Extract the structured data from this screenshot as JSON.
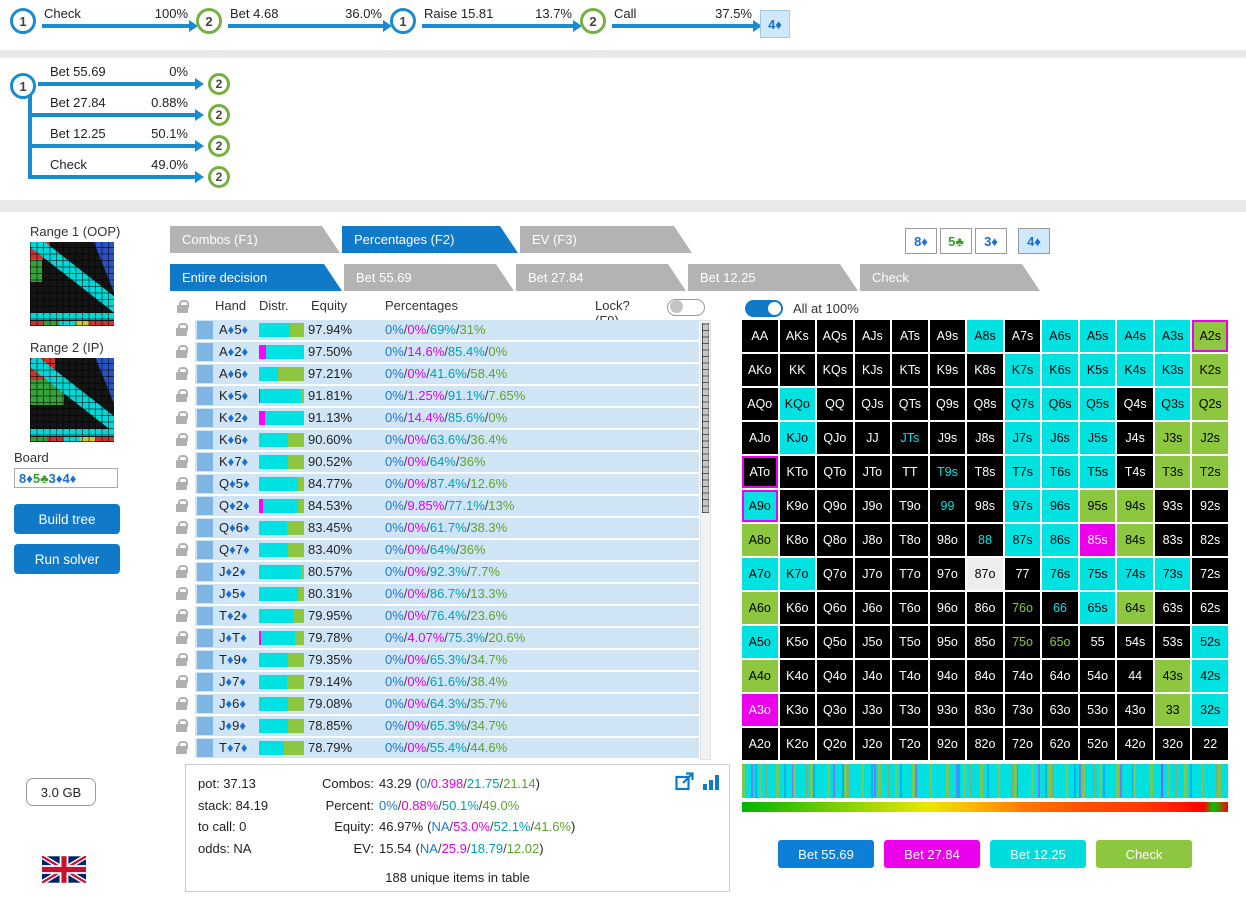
{
  "colors": {
    "action_text": [
      "#1d79cf",
      "#e100e1",
      "#009fae",
      "#5ea32a"
    ],
    "action_fill": [
      "#1d8ad6",
      "#ff00ff",
      "#00e2e2",
      "#8dc63f"
    ],
    "suit": {
      "d": "#1d6fd1",
      "c": "#3a9e27"
    },
    "accent_blue": "#1079c8"
  },
  "top_tree": {
    "nodes": [
      {
        "num": "1",
        "action": "Check",
        "pct": "100%"
      },
      {
        "num": "2",
        "action": "Bet 4.68",
        "pct": "36.0%"
      },
      {
        "num": "1",
        "action": "Raise 15.81",
        "pct": "13.7%"
      },
      {
        "num": "2",
        "action": "Call",
        "pct": "37.5%"
      }
    ],
    "card": "4♦"
  },
  "decision_tree": {
    "root_num": "1",
    "branches": [
      {
        "action": "Bet 55.69",
        "pct": "0%",
        "node": "2"
      },
      {
        "action": "Bet 27.84",
        "pct": "0.88%",
        "node": "2"
      },
      {
        "action": "Bet 12.25",
        "pct": "50.1%",
        "node": "2"
      },
      {
        "action": "Check",
        "pct": "49.0%",
        "node": "2"
      }
    ]
  },
  "sidebar": {
    "range1_label": "Range 1 (OOP)",
    "range2_label": "Range 2 (IP)",
    "board_label": "Board",
    "build_tree_label": "Build tree",
    "run_solver_label": "Run solver",
    "memory_label": "3.0 GB"
  },
  "board_cards": [
    {
      "label": "8♦",
      "suit": "d",
      "highlight": false
    },
    {
      "label": "5♣",
      "suit": "c",
      "highlight": false
    },
    {
      "label": "3♦",
      "suit": "d",
      "highlight": false
    },
    {
      "label": "4♦",
      "suit": "d",
      "highlight": true
    }
  ],
  "tabs_primary": [
    {
      "label": "Combos (F1)",
      "active": false
    },
    {
      "label": "Percentages (F2)",
      "active": true
    },
    {
      "label": "EV (F3)",
      "active": false
    }
  ],
  "tabs_secondary": [
    {
      "label": "Entire decision",
      "active": true
    },
    {
      "label": "Bet 55.69",
      "active": false
    },
    {
      "label": "Bet 27.84",
      "active": false
    },
    {
      "label": "Bet 12.25",
      "active": false
    },
    {
      "label": "Check",
      "active": false
    }
  ],
  "table": {
    "headers": {
      "hand": "Hand",
      "distr": "Distr.",
      "equity": "Equity",
      "percentages": "Percentages",
      "lock": "Lock? (F9)"
    },
    "lock_toggle_on": false,
    "rows": [
      {
        "hand": "A♦5♦",
        "equity": "97.94%",
        "pcts": [
          "0%",
          "0%",
          "69%",
          "31%"
        ]
      },
      {
        "hand": "A♦2♦",
        "equity": "97.50%",
        "pcts": [
          "0%",
          "14.6%",
          "85.4%",
          "0%"
        ]
      },
      {
        "hand": "A♦6♦",
        "equity": "97.21%",
        "pcts": [
          "0%",
          "0%",
          "41.6%",
          "58.4%"
        ]
      },
      {
        "hand": "K♦5♦",
        "equity": "91.81%",
        "pcts": [
          "0%",
          "1.25%",
          "91.1%",
          "7.65%"
        ]
      },
      {
        "hand": "K♦2♦",
        "equity": "91.13%",
        "pcts": [
          "0%",
          "14.4%",
          "85.6%",
          "0%"
        ]
      },
      {
        "hand": "K♦6♦",
        "equity": "90.60%",
        "pcts": [
          "0%",
          "0%",
          "63.6%",
          "36.4%"
        ]
      },
      {
        "hand": "K♦7♦",
        "equity": "90.52%",
        "pcts": [
          "0%",
          "0%",
          "64%",
          "36%"
        ]
      },
      {
        "hand": "Q♦5♦",
        "equity": "84.77%",
        "pcts": [
          "0%",
          "0%",
          "87.4%",
          "12.6%"
        ]
      },
      {
        "hand": "Q♦2♦",
        "equity": "84.53%",
        "pcts": [
          "0%",
          "9.85%",
          "77.1%",
          "13%"
        ]
      },
      {
        "hand": "Q♦6♦",
        "equity": "83.45%",
        "pcts": [
          "0%",
          "0%",
          "61.7%",
          "38.3%"
        ]
      },
      {
        "hand": "Q♦7♦",
        "equity": "83.40%",
        "pcts": [
          "0%",
          "0%",
          "64%",
          "36%"
        ]
      },
      {
        "hand": "J♦2♦",
        "equity": "80.57%",
        "pcts": [
          "0%",
          "0%",
          "92.3%",
          "7.7%"
        ]
      },
      {
        "hand": "J♦5♦",
        "equity": "80.31%",
        "pcts": [
          "0%",
          "0%",
          "86.7%",
          "13.3%"
        ]
      },
      {
        "hand": "T♦2♦",
        "equity": "79.95%",
        "pcts": [
          "0%",
          "0%",
          "76.4%",
          "23.6%"
        ]
      },
      {
        "hand": "J♦T♦",
        "equity": "79.78%",
        "pcts": [
          "0%",
          "4.07%",
          "75.3%",
          "20.6%"
        ]
      },
      {
        "hand": "T♦9♦",
        "equity": "79.35%",
        "pcts": [
          "0%",
          "0%",
          "65.3%",
          "34.7%"
        ]
      },
      {
        "hand": "J♦7♦",
        "equity": "79.14%",
        "pcts": [
          "0%",
          "0%",
          "61.6%",
          "38.4%"
        ]
      },
      {
        "hand": "J♦6♦",
        "equity": "79.08%",
        "pcts": [
          "0%",
          "0%",
          "64.3%",
          "35.7%"
        ]
      },
      {
        "hand": "J♦9♦",
        "equity": "78.85%",
        "pcts": [
          "0%",
          "0%",
          "65.3%",
          "34.7%"
        ]
      },
      {
        "hand": "T♦7♦",
        "equity": "78.79%",
        "pcts": [
          "0%",
          "0%",
          "55.4%",
          "44.6%"
        ]
      }
    ]
  },
  "matrix_toggle": {
    "label": "All at 100%",
    "on": true
  },
  "matrix": {
    "rows": [
      [
        [
          "AA",
          "k"
        ],
        [
          "AKs",
          "k"
        ],
        [
          "AQs",
          "k"
        ],
        [
          "AJs",
          "k"
        ],
        [
          "ATs",
          "k"
        ],
        [
          "A9s",
          "k"
        ],
        [
          "A8s",
          "c"
        ],
        [
          "A7s",
          "k"
        ],
        [
          "A6s",
          "c"
        ],
        [
          "A5s",
          "c"
        ],
        [
          "A4s",
          "c"
        ],
        [
          "A3s",
          "c"
        ],
        [
          "A2s",
          "g",
          "m"
        ]
      ],
      [
        [
          "AKo",
          "k"
        ],
        [
          "KK",
          "k"
        ],
        [
          "KQs",
          "k"
        ],
        [
          "KJs",
          "k"
        ],
        [
          "KTs",
          "k"
        ],
        [
          "K9s",
          "k"
        ],
        [
          "K8s",
          "k"
        ],
        [
          "K7s",
          "c"
        ],
        [
          "K6s",
          "c"
        ],
        [
          "K5s",
          "c"
        ],
        [
          "K4s",
          "c"
        ],
        [
          "K3s",
          "c"
        ],
        [
          "K2s",
          "g"
        ]
      ],
      [
        [
          "AQo",
          "k"
        ],
        [
          "KQo",
          "c"
        ],
        [
          "QQ",
          "k"
        ],
        [
          "QJs",
          "k"
        ],
        [
          "QTs",
          "k"
        ],
        [
          "Q9s",
          "k"
        ],
        [
          "Q8s",
          "k"
        ],
        [
          "Q7s",
          "c"
        ],
        [
          "Q6s",
          "c"
        ],
        [
          "Q5s",
          "c"
        ],
        [
          "Q4s",
          "k"
        ],
        [
          "Q3s",
          "c"
        ],
        [
          "Q2s",
          "g"
        ]
      ],
      [
        [
          "AJo",
          "k"
        ],
        [
          "KJo",
          "c"
        ],
        [
          "QJo",
          "k"
        ],
        [
          "JJ",
          "k"
        ],
        [
          "JTs",
          "kc"
        ],
        [
          "J9s",
          "k"
        ],
        [
          "J8s",
          "k"
        ],
        [
          "J7s",
          "c"
        ],
        [
          "J6s",
          "c"
        ],
        [
          "J5s",
          "c"
        ],
        [
          "J4s",
          "k"
        ],
        [
          "J3s",
          "g"
        ],
        [
          "J2s",
          "g"
        ]
      ],
      [
        [
          "ATo",
          "k",
          "m"
        ],
        [
          "KTo",
          "k"
        ],
        [
          "QTo",
          "k"
        ],
        [
          "JTo",
          "k"
        ],
        [
          "TT",
          "k"
        ],
        [
          "T9s",
          "kc"
        ],
        [
          "T8s",
          "k"
        ],
        [
          "T7s",
          "c"
        ],
        [
          "T6s",
          "c"
        ],
        [
          "T5s",
          "c"
        ],
        [
          "T4s",
          "k"
        ],
        [
          "T3s",
          "g"
        ],
        [
          "T2s",
          "g"
        ]
      ],
      [
        [
          "A9o",
          "c",
          "m"
        ],
        [
          "K9o",
          "k"
        ],
        [
          "Q9o",
          "k"
        ],
        [
          "J9o",
          "k"
        ],
        [
          "T9o",
          "k"
        ],
        [
          "99",
          "kc"
        ],
        [
          "98s",
          "k"
        ],
        [
          "97s",
          "c"
        ],
        [
          "96s",
          "c"
        ],
        [
          "95s",
          "g"
        ],
        [
          "94s",
          "g"
        ],
        [
          "93s",
          "k"
        ],
        [
          "92s",
          "k"
        ]
      ],
      [
        [
          "A8o",
          "g"
        ],
        [
          "K8o",
          "k"
        ],
        [
          "Q8o",
          "k"
        ],
        [
          "J8o",
          "k"
        ],
        [
          "T8o",
          "k"
        ],
        [
          "98o",
          "k"
        ],
        [
          "88",
          "kc"
        ],
        [
          "87s",
          "c"
        ],
        [
          "86s",
          "c"
        ],
        [
          "85s",
          "m"
        ],
        [
          "84s",
          "g"
        ],
        [
          "83s",
          "k"
        ],
        [
          "82s",
          "k"
        ]
      ],
      [
        [
          "A7o",
          "c"
        ],
        [
          "K7o",
          "c"
        ],
        [
          "Q7o",
          "k"
        ],
        [
          "J7o",
          "k"
        ],
        [
          "T7o",
          "k"
        ],
        [
          "97o",
          "k"
        ],
        [
          "87o",
          "w"
        ],
        [
          "77",
          "k"
        ],
        [
          "76s",
          "c"
        ],
        [
          "75s",
          "c"
        ],
        [
          "74s",
          "c"
        ],
        [
          "73s",
          "c"
        ],
        [
          "72s",
          "k"
        ]
      ],
      [
        [
          "A6o",
          "g"
        ],
        [
          "K6o",
          "k"
        ],
        [
          "Q6o",
          "k"
        ],
        [
          "J6o",
          "k"
        ],
        [
          "T6o",
          "k"
        ],
        [
          "96o",
          "k"
        ],
        [
          "86o",
          "k"
        ],
        [
          "76o",
          "kg"
        ],
        [
          "66",
          "kc"
        ],
        [
          "65s",
          "c"
        ],
        [
          "64s",
          "g"
        ],
        [
          "63s",
          "k"
        ],
        [
          "62s",
          "k"
        ]
      ],
      [
        [
          "A5o",
          "c"
        ],
        [
          "K5o",
          "k"
        ],
        [
          "Q5o",
          "k"
        ],
        [
          "J5o",
          "k"
        ],
        [
          "T5o",
          "k"
        ],
        [
          "95o",
          "k"
        ],
        [
          "85o",
          "k"
        ],
        [
          "75o",
          "kg"
        ],
        [
          "65o",
          "kg"
        ],
        [
          "55",
          "k"
        ],
        [
          "54s",
          "k"
        ],
        [
          "53s",
          "k"
        ],
        [
          "52s",
          "c"
        ]
      ],
      [
        [
          "A4o",
          "g"
        ],
        [
          "K4o",
          "k"
        ],
        [
          "Q4o",
          "k"
        ],
        [
          "J4o",
          "k"
        ],
        [
          "T4o",
          "k"
        ],
        [
          "94o",
          "k"
        ],
        [
          "84o",
          "k"
        ],
        [
          "74o",
          "k"
        ],
        [
          "64o",
          "k"
        ],
        [
          "54o",
          "k"
        ],
        [
          "44",
          "k"
        ],
        [
          "43s",
          "g"
        ],
        [
          "42s",
          "c"
        ]
      ],
      [
        [
          "A3o",
          "m"
        ],
        [
          "K3o",
          "k"
        ],
        [
          "Q3o",
          "k"
        ],
        [
          "J3o",
          "k"
        ],
        [
          "T3o",
          "k"
        ],
        [
          "93o",
          "k"
        ],
        [
          "83o",
          "k"
        ],
        [
          "73o",
          "k"
        ],
        [
          "63o",
          "k"
        ],
        [
          "53o",
          "k"
        ],
        [
          "43o",
          "k"
        ],
        [
          "33",
          "g"
        ],
        [
          "32s",
          "c"
        ]
      ],
      [
        [
          "A2o",
          "k"
        ],
        [
          "K2o",
          "k"
        ],
        [
          "Q2o",
          "k"
        ],
        [
          "J2o",
          "k"
        ],
        [
          "T2o",
          "k"
        ],
        [
          "92o",
          "k"
        ],
        [
          "82o",
          "k"
        ],
        [
          "72o",
          "k"
        ],
        [
          "62o",
          "k"
        ],
        [
          "52o",
          "k"
        ],
        [
          "42o",
          "k"
        ],
        [
          "32o",
          "k"
        ],
        [
          "22",
          "k"
        ]
      ]
    ]
  },
  "summary": {
    "pot": "pot: 37.13",
    "stack": "stack: 84.19",
    "to_call": "to call: 0",
    "odds": "odds: NA",
    "combos_label": "Combos:",
    "combos_total": "43.29",
    "combos_parts": [
      "0",
      "0.398",
      "21.75",
      "21.14"
    ],
    "percent_label": "Percent:",
    "percent_parts": [
      "0%",
      "0.88%",
      "50.1%",
      "49.0%"
    ],
    "equity_label": "Equity:",
    "equity_total": "46.97%",
    "equity_parts": [
      "NA",
      "53.0%",
      "52.1%",
      "41.6%"
    ],
    "ev_label": "EV:",
    "ev_total": "15.54",
    "ev_parts": [
      "NA",
      "25.9",
      "18.79",
      "12.02"
    ],
    "items_count": "188 unique items in table"
  },
  "action_buttons": [
    {
      "label": "Bet 55.69",
      "color": "#0d7fd6",
      "text": "#ffffff"
    },
    {
      "label": "Bet 27.84",
      "color": "#ea00ea",
      "text": "#ffffff"
    },
    {
      "label": "Bet 12.25",
      "color": "#00dcdc",
      "text": "#ffffff"
    },
    {
      "label": "Check",
      "color": "#8dc63f",
      "text": "#ffffff"
    }
  ]
}
